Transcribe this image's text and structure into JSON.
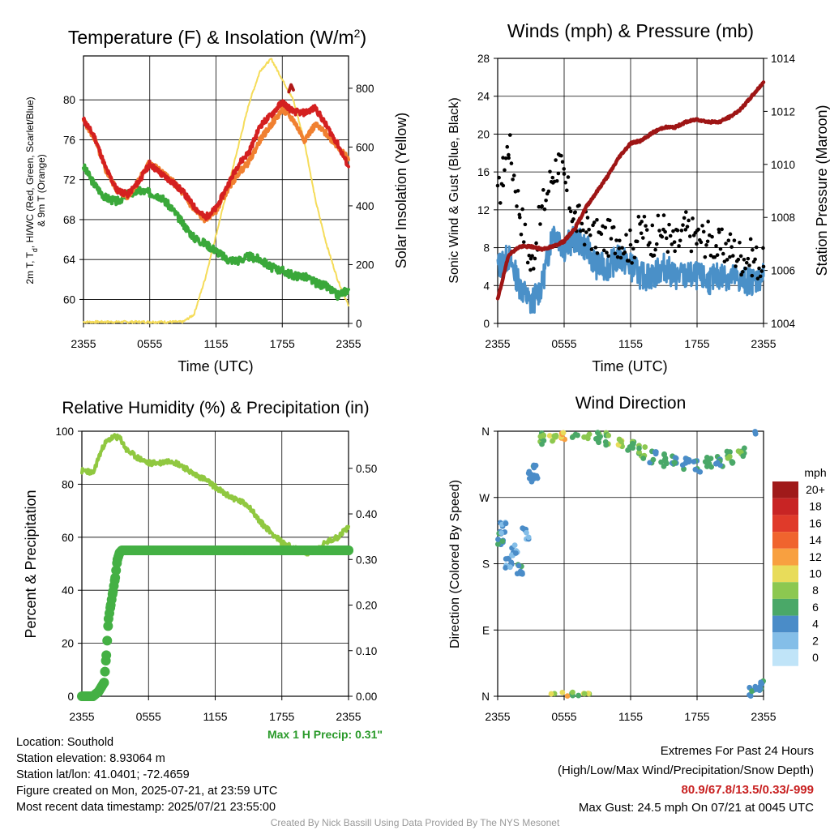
{
  "chart_data": [
    {
      "type": "line",
      "title_main": "Temperature (F) & Insolation (W/m",
      "title_sup": "2",
      "title_end": ")",
      "ylabel_line1": "2m T, T",
      "ylabel_sub": "d",
      "ylabel_line1_end": ", HI/WC (Red, Green, Scarlet/Blue)",
      "ylabel_line2": "& 9m T (Orange)",
      "y2label": "Solar Insolation (Yellow)",
      "xlabel": "Time (UTC)",
      "x_ticks": [
        "2355",
        "0555",
        "1155",
        "1755",
        "2355"
      ],
      "y_ticks": [
        "60",
        "64",
        "68",
        "72",
        "76",
        "80"
      ],
      "y2_ticks": [
        "0",
        "200",
        "400",
        "600",
        "800"
      ],
      "ylim": [
        57.6,
        84.4
      ],
      "y2lim": [
        0,
        910
      ],
      "colors": {
        "temp": "#d42020",
        "temp9m": "#f08030",
        "dewpoint": "#3aa83a",
        "solar": "#f5dc5a",
        "hiwc": "#b01818"
      },
      "series": [
        {
          "name": "2m T",
          "x": [
            0,
            1,
            2,
            3,
            4,
            5,
            6,
            7,
            8,
            9,
            10,
            11,
            12,
            13,
            14,
            15,
            16,
            17,
            18,
            19,
            20,
            21,
            22,
            23,
            24
          ],
          "values": [
            78,
            76.3,
            73.2,
            71,
            70.5,
            71.8,
            73.6,
            72.6,
            71.8,
            70.8,
            69.3,
            68.2,
            69.1,
            71.3,
            73.5,
            74.8,
            77.4,
            78.5,
            79.8,
            78.8,
            78.7,
            79.2,
            77.4,
            75.6,
            73.3
          ]
        },
        {
          "name": "9m T",
          "x": [
            0,
            1,
            2,
            3,
            4,
            5,
            6,
            7,
            8,
            9,
            10,
            11,
            12,
            13,
            14,
            15,
            16,
            17,
            18,
            19,
            20,
            21,
            22,
            23,
            24
          ],
          "values": [
            78,
            76.1,
            73.0,
            71,
            70.3,
            71.9,
            73.8,
            72.8,
            71.9,
            70.6,
            69.0,
            68.0,
            68.9,
            70.9,
            72.6,
            73.8,
            76.0,
            77.5,
            79.0,
            78.0,
            76.0,
            77.5,
            76.6,
            75.4,
            74.0
          ]
        },
        {
          "name": "Dewpoint",
          "x": [
            0,
            1,
            2,
            3,
            4,
            5,
            6,
            7,
            8,
            9,
            10,
            11,
            12,
            13,
            14,
            15,
            16,
            17,
            18,
            19,
            20,
            21,
            22,
            23,
            24
          ],
          "values": [
            73.3,
            71.5,
            70.2,
            69.8,
            70.5,
            70.9,
            70.7,
            70.3,
            69.1,
            67.6,
            66.2,
            65.6,
            64.9,
            64.0,
            63.9,
            64.3,
            64.0,
            63.2,
            62.9,
            62.4,
            62.3,
            61.7,
            61.3,
            60.4,
            61.0
          ]
        },
        {
          "name": "Solar",
          "x": [
            0,
            3,
            6,
            9,
            10,
            11,
            12,
            13,
            14,
            15,
            16,
            17,
            18,
            19,
            20,
            21,
            22,
            23,
            24
          ],
          "values": [
            5,
            5,
            5,
            5,
            30,
            150,
            300,
            450,
            600,
            750,
            860,
            900,
            830,
            760,
            620,
            420,
            270,
            150,
            60
          ]
        },
        {
          "name": "HI",
          "x": [
            18.6,
            18.8,
            19.0
          ],
          "values": [
            80.8,
            81.5,
            81.0
          ]
        }
      ]
    },
    {
      "type": "scatter",
      "title": "Winds (mph) & Pressure (mb)",
      "ylabel": "Sonic Wind & Gust (Blue, Black)",
      "y2label": "Station Pressure (Maroon)",
      "xlabel": "Time (UTC)",
      "x_ticks": [
        "2355",
        "0555",
        "1155",
        "1755",
        "2355"
      ],
      "y_ticks": [
        "0",
        "4",
        "8",
        "12",
        "16",
        "20",
        "24",
        "28"
      ],
      "y2_ticks": [
        "1004",
        "1006",
        "1008",
        "1010",
        "1012",
        "1014"
      ],
      "ylim": [
        0,
        28
      ],
      "y2lim": [
        1004,
        1014
      ],
      "colors": {
        "wind": "#4a90c8",
        "gust": "#000000",
        "pressure": "#9e1515"
      },
      "series": [
        {
          "name": "Wind",
          "x": [
            0,
            1,
            2,
            3,
            4,
            5,
            6,
            7,
            8,
            9,
            10,
            11,
            12,
            13,
            14,
            15,
            16,
            17,
            18,
            19,
            20,
            21,
            22,
            23,
            24
          ],
          "values": [
            6,
            7,
            4,
            2,
            4,
            10,
            8,
            9,
            8,
            6,
            6,
            7,
            6,
            5,
            5,
            6,
            5,
            5,
            5,
            4.5,
            5,
            5,
            4.5,
            4.5,
            5
          ]
        },
        {
          "name": "Gust",
          "x": [
            0,
            0.5,
            1,
            2,
            3,
            4,
            5,
            5.5,
            6,
            7,
            8,
            9,
            10,
            11,
            12,
            13,
            14,
            15,
            16,
            17,
            18,
            19,
            20,
            21,
            22,
            23,
            24
          ],
          "values": [
            13,
            16,
            19,
            12,
            6,
            12,
            16,
            17,
            15,
            11,
            10,
            9,
            9,
            9,
            8,
            10,
            9,
            10,
            8,
            10,
            9,
            9,
            8,
            8,
            7,
            7,
            6
          ]
        },
        {
          "name": "Pressure",
          "x": [
            0,
            1,
            2,
            3,
            4,
            5,
            6,
            7,
            8,
            9,
            10,
            11,
            12,
            13,
            14,
            15,
            16,
            17,
            18,
            19,
            20,
            21,
            22,
            23,
            24
          ],
          "values": [
            1004.9,
            1006.6,
            1006.9,
            1006.9,
            1006.8,
            1006.9,
            1007.1,
            1007.6,
            1008.4,
            1009.0,
            1009.6,
            1010.3,
            1010.8,
            1010.9,
            1011.2,
            1011.4,
            1011.4,
            1011.6,
            1011.7,
            1011.6,
            1011.6,
            1011.8,
            1012.1,
            1012.6,
            1013.1
          ]
        }
      ]
    },
    {
      "type": "line",
      "title": "Relative Humidity (%) & Precipitation (in)",
      "ylabel": "Percent & Precipitation",
      "x_ticks": [
        "2355",
        "0555",
        "1155",
        "1755",
        "2355"
      ],
      "y_ticks": [
        "0",
        "20",
        "40",
        "60",
        "80",
        "100"
      ],
      "y2_ticks": [
        "0.00",
        "0.10",
        "0.20",
        "0.30",
        "0.40",
        "0.50"
      ],
      "ylim": [
        0,
        100
      ],
      "y2lim": [
        0,
        0.5814
      ],
      "note": "Max 1 H Precip: 0.31\"",
      "colors": {
        "rh": "#90c840",
        "precip": "#44b044",
        "note": "#2a9a2a"
      },
      "series": [
        {
          "name": "RH",
          "x": [
            0,
            0.5,
            1,
            1.5,
            2,
            2.5,
            3,
            3.5,
            4,
            5,
            6,
            7,
            8,
            9,
            10,
            11,
            12,
            13,
            14,
            15,
            16,
            17,
            18,
            19,
            20,
            21,
            22,
            23,
            24
          ],
          "values": [
            85,
            85,
            84,
            90,
            95,
            97,
            98,
            97,
            93,
            90,
            88,
            88,
            89,
            87,
            84,
            82,
            79,
            76,
            74,
            72,
            66,
            62,
            58,
            56,
            54,
            55,
            58,
            60,
            64
          ]
        },
        {
          "name": "Precipitation",
          "x": [
            0,
            0.5,
            1,
            1.5,
            2,
            2.2,
            2.4,
            2.6,
            2.8,
            3.0,
            3.2,
            3.4,
            3.6,
            4,
            6,
            10,
            14,
            18,
            22,
            24
          ],
          "values": [
            0,
            0,
            0,
            0.01,
            0.03,
            0.09,
            0.17,
            0.2,
            0.23,
            0.26,
            0.3,
            0.315,
            0.32,
            0.32,
            0.32,
            0.32,
            0.32,
            0.32,
            0.32,
            0.32
          ]
        }
      ]
    },
    {
      "type": "scatter",
      "title": "Wind Direction",
      "ylabel": "Direction (Colored By Speed)",
      "x_ticks": [
        "2355",
        "0555",
        "1155",
        "1755",
        "2355"
      ],
      "y_ticks": [
        "N",
        "E",
        "S",
        "W",
        "N"
      ],
      "ylim": [
        0,
        360
      ],
      "legend_title": "mph",
      "legend_labels": [
        "20+",
        "18",
        "16",
        "14",
        "12",
        "10",
        "8",
        "6",
        "4",
        "2",
        "0"
      ],
      "legend_colors": [
        "#a01a1a",
        "#c82424",
        "#e03a2a",
        "#f0642e",
        "#f8a040",
        "#e8dc5a",
        "#8cc850",
        "#4aa868",
        "#4a8cc8",
        "#84bee8",
        "#c0e4f8"
      ],
      "series": [
        {
          "name": "Direction",
          "x": [
            0,
            0.2,
            0.5,
            1,
            1.5,
            2,
            2.5,
            3,
            3.5,
            4,
            5,
            6,
            7,
            8,
            9,
            10,
            11,
            12,
            13,
            14,
            15,
            16,
            17,
            18,
            19,
            20,
            21,
            22,
            23,
            23.5,
            24
          ],
          "values": [
            210,
            215,
            230,
            180,
            200,
            175,
            220,
            300,
            305,
            350,
            355,
            358,
            358,
            355,
            350,
            350,
            345,
            338,
            332,
            325,
            320,
            318,
            315,
            312,
            318,
            320,
            325,
            330,
            5,
            10,
            15
          ],
          "speeds": [
            4,
            4,
            2,
            3,
            2,
            4,
            2,
            4,
            4,
            6,
            8,
            10,
            6,
            8,
            6,
            6,
            8,
            6,
            6,
            4,
            6,
            4,
            4,
            4,
            6,
            4,
            6,
            6,
            4,
            4,
            4
          ]
        }
      ]
    }
  ],
  "info": {
    "location": "Location: Southold",
    "elevation": "Station elevation: 8.93064 m",
    "latlon": "Station lat/lon: 41.0401; -72.4659",
    "created": "Figure created on Mon, 2025-07-21, at 23:59 UTC",
    "recent": "Most recent data timestamp: 2025/07/21 23:55:00"
  },
  "extremes": {
    "heading": "Extremes For Past 24 Hours",
    "fields": "(High/Low/Max Wind/Precipitation/Snow Depth)",
    "values": "80.9/67.8/13.5/0.33/-999",
    "gust": "Max Gust: 24.5 mph On 07/21 at 0045 UTC",
    "values_color": "#c82020"
  },
  "credit": "Created By Nick Bassill Using Data Provided By The NYS Mesonet"
}
